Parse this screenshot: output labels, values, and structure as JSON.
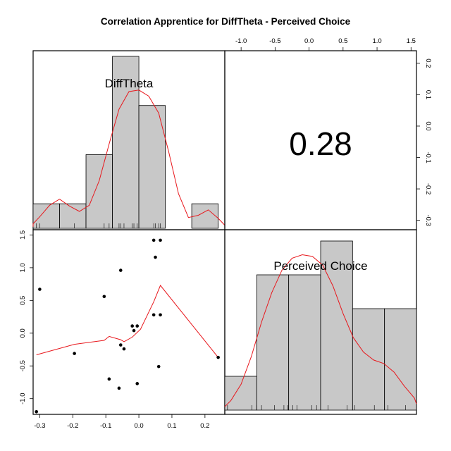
{
  "chart_data": {
    "type": "scatter",
    "title": "Correlation Apprentice for DiffTheta - Perceived Choice",
    "variables": [
      "DiffTheta",
      "Perceived Choice"
    ],
    "correlation": "0.28",
    "difftheta_axis": {
      "range": [
        -0.32,
        0.26
      ],
      "ticks": [
        -0.3,
        -0.2,
        -0.1,
        0.0,
        0.1,
        0.2
      ],
      "tick_labels": [
        "-0.3",
        "-0.2",
        "-0.1",
        "0.0",
        "0.1",
        "0.2"
      ]
    },
    "choice_axis": {
      "range": [
        -1.24,
        1.58
      ],
      "ticks": [
        -1.0,
        -0.5,
        0.0,
        0.5,
        1.0,
        1.5
      ],
      "tick_labels": [
        "-1.0",
        "-0.5",
        "0.0",
        "0.5",
        "1.0",
        "1.5"
      ]
    },
    "points": [
      {
        "x": -0.31,
        "y": -1.2
      },
      {
        "x": -0.3,
        "y": 0.67
      },
      {
        "x": -0.195,
        "y": -0.31
      },
      {
        "x": -0.105,
        "y": 0.56
      },
      {
        "x": -0.09,
        "y": -0.7
      },
      {
        "x": -0.06,
        "y": -0.84
      },
      {
        "x": -0.055,
        "y": 0.96
      },
      {
        "x": -0.055,
        "y": -0.18
      },
      {
        "x": -0.045,
        "y": -0.24
      },
      {
        "x": -0.02,
        "y": 0.11
      },
      {
        "x": -0.015,
        "y": 0.04
      },
      {
        "x": -0.005,
        "y": 0.11
      },
      {
        "x": -0.005,
        "y": -0.77
      },
      {
        "x": 0.045,
        "y": 1.42
      },
      {
        "x": 0.045,
        "y": 0.28
      },
      {
        "x": 0.05,
        "y": 1.16
      },
      {
        "x": 0.06,
        "y": -0.51
      },
      {
        "x": 0.065,
        "y": 0.28
      },
      {
        "x": 0.065,
        "y": 1.42
      },
      {
        "x": 0.24,
        "y": -0.37
      }
    ],
    "smooth_line": [
      {
        "x": -0.31,
        "y": -0.33
      },
      {
        "x": -0.195,
        "y": -0.17
      },
      {
        "x": -0.105,
        "y": -0.11
      },
      {
        "x": -0.09,
        "y": -0.05
      },
      {
        "x": -0.055,
        "y": -0.1
      },
      {
        "x": -0.045,
        "y": -0.13
      },
      {
        "x": -0.02,
        "y": -0.06
      },
      {
        "x": 0.005,
        "y": 0.06
      },
      {
        "x": 0.045,
        "y": 0.48
      },
      {
        "x": 0.065,
        "y": 0.73
      },
      {
        "x": 0.24,
        "y": -0.37
      }
    ],
    "difftheta_hist": {
      "breaks": [
        -0.32,
        -0.24,
        -0.16,
        -0.08,
        0.0,
        0.08,
        0.16,
        0.24
      ],
      "counts": [
        1,
        1,
        3,
        7,
        5,
        0,
        1
      ]
    },
    "difftheta_density": [
      [
        -0.36,
        0.02
      ],
      [
        -0.33,
        0.06
      ],
      [
        -0.3,
        0.15
      ],
      [
        -0.27,
        0.3
      ],
      [
        -0.24,
        0.38
      ],
      [
        -0.21,
        0.29
      ],
      [
        -0.18,
        0.22
      ],
      [
        -0.15,
        0.3
      ],
      [
        -0.12,
        0.62
      ],
      [
        -0.09,
        1.1
      ],
      [
        -0.06,
        1.55
      ],
      [
        -0.03,
        1.78
      ],
      [
        0.0,
        1.8
      ],
      [
        0.03,
        1.72
      ],
      [
        0.06,
        1.5
      ],
      [
        0.09,
        1.0
      ],
      [
        0.12,
        0.45
      ],
      [
        0.15,
        0.14
      ],
      [
        0.18,
        0.17
      ],
      [
        0.21,
        0.24
      ],
      [
        0.24,
        0.13
      ],
      [
        0.27,
        0.04
      ],
      [
        0.3,
        0.01
      ]
    ],
    "difftheta_rug": [
      -0.31,
      -0.3,
      -0.195,
      -0.105,
      -0.09,
      -0.06,
      -0.055,
      -0.045,
      -0.02,
      -0.015,
      -0.005,
      0.045,
      0.05,
      0.06,
      0.065,
      0.24
    ],
    "choice_hist": {
      "breaks": [
        -1.24,
        -0.77,
        -0.3,
        0.17,
        0.64,
        1.11,
        1.58
      ],
      "counts": [
        1,
        4,
        4,
        5,
        3,
        3
      ]
    },
    "choice_density": [
      [
        -1.3,
        0.1
      ],
      [
        -1.15,
        0.28
      ],
      [
        -1.0,
        0.75
      ],
      [
        -0.85,
        1.55
      ],
      [
        -0.7,
        2.55
      ],
      [
        -0.55,
        3.4
      ],
      [
        -0.4,
        4.05
      ],
      [
        -0.25,
        4.4
      ],
      [
        -0.1,
        4.5
      ],
      [
        0.05,
        4.45
      ],
      [
        0.2,
        4.2
      ],
      [
        0.35,
        3.6
      ],
      [
        0.5,
        2.8
      ],
      [
        0.65,
        2.1
      ],
      [
        0.8,
        1.68
      ],
      [
        0.95,
        1.45
      ],
      [
        1.1,
        1.35
      ],
      [
        1.25,
        1.1
      ],
      [
        1.4,
        0.7
      ],
      [
        1.55,
        0.35
      ],
      [
        1.65,
        0.18
      ]
    ],
    "choice_rug": [
      -1.2,
      -0.84,
      -0.77,
      -0.7,
      -0.51,
      -0.37,
      -0.31,
      -0.24,
      -0.18,
      0.04,
      0.11,
      0.28,
      0.56,
      0.67,
      0.96,
      1.16,
      1.42
    ]
  }
}
